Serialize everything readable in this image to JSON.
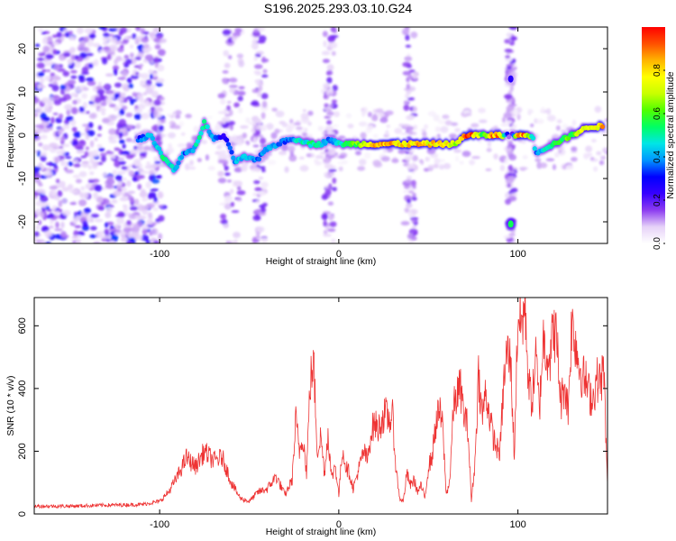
{
  "figure_title": "S196.2025.293.03.10.G24",
  "chart_data": [
    {
      "type": "heatmap",
      "name": "spectrogram",
      "xlabel": "Height of straight line (km)",
      "ylabel": "Frequency (Hz)",
      "xlim": [
        -170,
        150
      ],
      "ylim": [
        -25,
        25
      ],
      "xticks": [
        -100,
        0,
        100
      ],
      "yticks": [
        -20,
        -10,
        0,
        10,
        20
      ],
      "colorbar": {
        "label": "Normalized spectral amplitude",
        "range": [
          0,
          1
        ],
        "ticks": [
          0.0,
          0.2,
          0.4,
          0.6,
          0.8
        ],
        "colors": [
          "#ffffff",
          "#e6d2f8",
          "#8c3cf0",
          "#3700ff",
          "#0000ff",
          "#0096ff",
          "#00e6e6",
          "#00ff64",
          "#50ff00",
          "#c8ff00",
          "#ffff00",
          "#ffb400",
          "#ff5000",
          "#ff0000"
        ]
      },
      "ridge": {
        "x": [
          -112,
          -105,
          -98,
          -92,
          -86,
          -80,
          -75,
          -70,
          -64,
          -58,
          -52,
          -46,
          -40,
          -34,
          -28,
          -22,
          -16,
          -10,
          -5,
          0,
          10,
          20,
          30,
          40,
          50,
          60,
          66,
          70,
          75,
          80,
          86,
          90,
          92,
          96,
          100,
          104,
          108,
          110,
          115,
          120,
          125,
          130,
          135,
          140,
          145,
          148
        ],
        "y": [
          -1,
          0,
          -5,
          -8,
          -4,
          -3,
          3,
          -1,
          0,
          -6,
          -5,
          -6,
          -3,
          -2,
          -1,
          -1,
          -2,
          -2,
          -1,
          -2,
          -2,
          -2,
          -2,
          -2,
          -2,
          -2,
          -2,
          0,
          0,
          0,
          0,
          0,
          0,
          0,
          0,
          0,
          0,
          -4,
          -3,
          -2,
          -1,
          0,
          1,
          2,
          2,
          2
        ],
        "amp": [
          0.35,
          0.45,
          0.55,
          0.5,
          0.4,
          0.5,
          0.55,
          0.4,
          0.25,
          0.45,
          0.5,
          0.4,
          0.45,
          0.4,
          0.4,
          0.5,
          0.55,
          0.5,
          0.4,
          0.5,
          0.65,
          0.85,
          0.9,
          0.85,
          0.85,
          0.85,
          0.7,
          0.95,
          0.95,
          0.6,
          0.9,
          0.9,
          0.6,
          0.0,
          0.95,
          0.95,
          0.5,
          0.4,
          0.5,
          0.6,
          0.6,
          0.65,
          0.75,
          0.8,
          0.85,
          0.85
        ]
      },
      "isolated_blobs": [
        {
          "x": 96,
          "y": -20.5,
          "amp": 0.55
        },
        {
          "x": 96,
          "y": 13,
          "amp": 0.25
        }
      ]
    },
    {
      "type": "line",
      "name": "snr",
      "xlabel": "Height of straight line (km)",
      "ylabel": "SNR (10 * v/v)",
      "xlim": [
        -170,
        150
      ],
      "ylim": [
        0,
        690
      ],
      "xticks": [
        -100,
        0,
        100
      ],
      "yticks": [
        0,
        200,
        400,
        600
      ],
      "series": [
        {
          "name": "SNR",
          "color": "#ee3333",
          "x": [
            -170,
            -150,
            -130,
            -110,
            -100,
            -95,
            -90,
            -85,
            -80,
            -75,
            -70,
            -65,
            -60,
            -55,
            -50,
            -45,
            -40,
            -35,
            -30,
            -26,
            -24,
            -22,
            -20,
            -18,
            -16,
            -14,
            -12,
            -10,
            -8,
            -6,
            -4,
            -2,
            0,
            2,
            4,
            6,
            8,
            10,
            12,
            14,
            16,
            18,
            20,
            22,
            24,
            26,
            28,
            30,
            32,
            34,
            36,
            38,
            40,
            42,
            44,
            46,
            48,
            50,
            52,
            54,
            56,
            58,
            60,
            62,
            64,
            66,
            68,
            70,
            72,
            74,
            76,
            78,
            80,
            82,
            84,
            86,
            88,
            90,
            92,
            94,
            96,
            98,
            100,
            102,
            104,
            106,
            108,
            110,
            112,
            114,
            116,
            118,
            120,
            122,
            124,
            126,
            128,
            130,
            132,
            134,
            136,
            138,
            140,
            142,
            144,
            146,
            148,
            150
          ],
          "y": [
            25,
            25,
            28,
            30,
            40,
            70,
            120,
            180,
            150,
            200,
            170,
            180,
            100,
            50,
            40,
            70,
            80,
            120,
            60,
            110,
            300,
            200,
            250,
            130,
            420,
            480,
            200,
            250,
            130,
            260,
            110,
            160,
            60,
            210,
            150,
            130,
            80,
            120,
            160,
            200,
            170,
            260,
            290,
            270,
            300,
            320,
            300,
            310,
            140,
            50,
            40,
            130,
            90,
            110,
            70,
            90,
            50,
            150,
            180,
            280,
            330,
            280,
            60,
            110,
            340,
            380,
            400,
            310,
            280,
            40,
            160,
            450,
            310,
            390,
            320,
            250,
            210,
            200,
            410,
            520,
            480,
            180,
            640,
            600,
            670,
            410,
            360,
            500,
            330,
            560,
            520,
            500,
            600,
            530,
            350,
            420,
            330,
            610,
            560,
            480,
            440,
            420,
            380,
            370,
            430,
            420,
            460,
            80
          ]
        }
      ]
    }
  ]
}
